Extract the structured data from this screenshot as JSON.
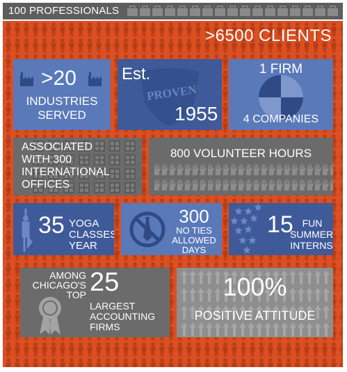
{
  "header": {
    "professionals": "100 PROFESSIONALS"
  },
  "clients": ">6500 CLIENTS",
  "industries": {
    "number": ">20",
    "line1": "INDUSTRIES",
    "line2": "SERVED"
  },
  "established": {
    "prefix": "Est.",
    "stamp": "PROVEN",
    "year": "1955"
  },
  "firm": {
    "top": "1 FIRM",
    "bottom": "4 COMPANIES"
  },
  "offices": {
    "line1": "ASSOCIATED",
    "line2": "WITH 300",
    "line3": "INTERNATIONAL",
    "line4": "OFFICES"
  },
  "volunteer": {
    "text": "800 VOLUNTEER HOURS"
  },
  "yoga": {
    "number": "35",
    "line1": "YOGA",
    "line2": "CLASSES/",
    "line3": "YEAR"
  },
  "noties": {
    "number": "300",
    "line1": "NO TIES",
    "line2": "ALLOWED",
    "line3": "DAYS"
  },
  "interns": {
    "number": "15",
    "line1": "FUN",
    "line2": "SUMMER",
    "line3": "INTERNS"
  },
  "ranking": {
    "line1": "AMONG",
    "line2": "CHICAGO'S",
    "line3": "TOP",
    "number": "25",
    "line4": "LARGEST",
    "line5": "ACCOUNTING",
    "line6": "FIRMS"
  },
  "attitude": {
    "number": "100%",
    "text": "POSITIVE ATTITUDE"
  },
  "colors": {
    "orange": "#db4f22",
    "blue": "#5a79b9",
    "dark_blue": "#3f5a99",
    "gray": "#6b6b6b",
    "light_gray": "#8e8e8e",
    "top_bar": "#5e5e5e"
  },
  "icons": [
    "person-icon",
    "briefcase-icon",
    "factory-icon",
    "shield-icon",
    "pie-chart-icon",
    "building-icon",
    "hand-icon",
    "yoga-figure-icon",
    "no-tie-icon",
    "star-icon",
    "award-ribbon-icon",
    "up-arrow-icon"
  ]
}
